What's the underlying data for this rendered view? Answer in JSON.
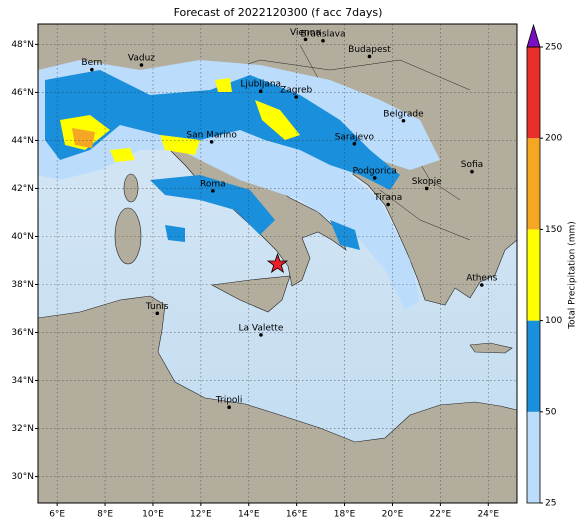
{
  "title": "Forecast of 2022120300 (f acc 7days)",
  "map": {
    "xlim": [
      5.2,
      25.2
    ],
    "ylim": [
      28.9,
      48.85
    ],
    "xticks": [
      {
        "value": 6,
        "label": "6°E"
      },
      {
        "value": 8,
        "label": "8°E"
      },
      {
        "value": 10,
        "label": "10°E"
      },
      {
        "value": 12,
        "label": "12°E"
      },
      {
        "value": 14,
        "label": "14°E"
      },
      {
        "value": 16,
        "label": "16°E"
      },
      {
        "value": 18,
        "label": "18°E"
      },
      {
        "value": 20,
        "label": "20°E"
      },
      {
        "value": 22,
        "label": "22°E"
      },
      {
        "value": 24,
        "label": "24°E"
      }
    ],
    "yticks": [
      {
        "value": 30,
        "label": "30°N"
      },
      {
        "value": 32,
        "label": "32°N"
      },
      {
        "value": 34,
        "label": "34°N"
      },
      {
        "value": 36,
        "label": "36°N"
      },
      {
        "value": 38,
        "label": "38°N"
      },
      {
        "value": 40,
        "label": "40°N"
      },
      {
        "value": 42,
        "label": "42°N"
      },
      {
        "value": 44,
        "label": "44°N"
      },
      {
        "value": 46,
        "label": "46°N"
      },
      {
        "value": 48,
        "label": "48°N"
      }
    ],
    "cities": [
      {
        "label": "Vienna",
        "lon": 16.37,
        "lat": 48.21
      },
      {
        "label": "Bratislava",
        "lon": 17.1,
        "lat": 48.15
      },
      {
        "label": "Vaduz",
        "lon": 9.52,
        "lat": 47.14
      },
      {
        "label": "Bern",
        "lon": 7.45,
        "lat": 46.95
      },
      {
        "label": "Budapest",
        "lon": 19.04,
        "lat": 47.5
      },
      {
        "label": "Ljubljana",
        "lon": 14.5,
        "lat": 46.05
      },
      {
        "label": "Zagreb",
        "lon": 15.98,
        "lat": 45.81
      },
      {
        "label": "Belgrade",
        "lon": 20.46,
        "lat": 44.82
      },
      {
        "label": "San Marino",
        "lon": 12.45,
        "lat": 43.94
      },
      {
        "label": "Sarajevo",
        "lon": 18.41,
        "lat": 43.86
      },
      {
        "label": "Podgorica",
        "lon": 19.26,
        "lat": 42.44
      },
      {
        "label": "Sofia",
        "lon": 23.32,
        "lat": 42.7
      },
      {
        "label": "Roma",
        "lon": 12.5,
        "lat": 41.9
      },
      {
        "label": "Skopje",
        "lon": 21.43,
        "lat": 42.0
      },
      {
        "label": "Tirana",
        "lon": 19.82,
        "lat": 41.33
      },
      {
        "label": "Athens",
        "lon": 23.73,
        "lat": 37.98
      },
      {
        "label": "Tunis",
        "lon": 10.18,
        "lat": 36.8
      },
      {
        "label": "La Valette",
        "lon": 14.51,
        "lat": 35.9
      },
      {
        "label": "Tripoli",
        "lon": 13.18,
        "lat": 32.89
      }
    ],
    "marker": {
      "lon": 15.2,
      "lat": 38.85,
      "color": "#e8202a"
    }
  },
  "colorbar": {
    "label": "Total Precipitation (mm)",
    "ticks": [
      25,
      50,
      100,
      150,
      200,
      250
    ],
    "colors": [
      "#bcdcfb",
      "#1a8fdb",
      "#ffff00",
      "#f5a623",
      "#e8302a"
    ],
    "extend_color": "#7a10c0"
  }
}
